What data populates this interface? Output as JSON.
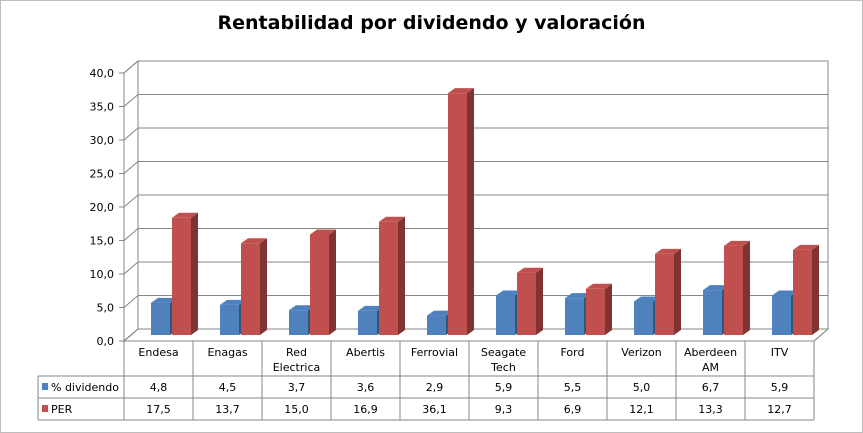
{
  "chart_data": {
    "type": "bar",
    "title": "Rentabilidad por dividendo y valoración",
    "categories": [
      "Endesa",
      "Enagas",
      "Red Electrica",
      "Abertis",
      "Ferrovial",
      "Seagate Tech",
      "Ford",
      "Verizon",
      "Aberdeen AM",
      "ITV"
    ],
    "category_lines": [
      [
        "Endesa"
      ],
      [
        "Enagas"
      ],
      [
        "Red",
        "Electrica"
      ],
      [
        "Abertis"
      ],
      [
        "Ferrovial"
      ],
      [
        "Seagate",
        "Tech"
      ],
      [
        "Ford"
      ],
      [
        "Verizon"
      ],
      [
        "Aberdeen",
        "AM"
      ],
      [
        "ITV"
      ]
    ],
    "series": [
      {
        "name": "% dividendo",
        "color": "#4f81bd",
        "values": [
          4.8,
          4.5,
          3.7,
          3.6,
          2.9,
          5.9,
          5.5,
          5.0,
          6.7,
          5.9
        ],
        "labels": [
          "4,8",
          "4,5",
          "3,7",
          "3,6",
          "2,9",
          "5,9",
          "5,5",
          "5,0",
          "6,7",
          "5,9"
        ]
      },
      {
        "name": "PER",
        "color": "#c0504d",
        "values": [
          17.5,
          13.7,
          15.0,
          16.9,
          36.1,
          9.3,
          6.9,
          12.1,
          13.3,
          12.7
        ],
        "labels": [
          "17,5",
          "13,7",
          "15,0",
          "16,9",
          "36,1",
          "9,3",
          "6,9",
          "12,1",
          "13,3",
          "12,7"
        ]
      }
    ],
    "ylim": [
      0,
      40
    ],
    "yticks": [
      "0,0",
      "5,0",
      "10,0",
      "15,0",
      "20,0",
      "25,0",
      "30,0",
      "35,0",
      "40,0"
    ],
    "grid": true,
    "style": "3d-column",
    "legend": "data-table"
  }
}
